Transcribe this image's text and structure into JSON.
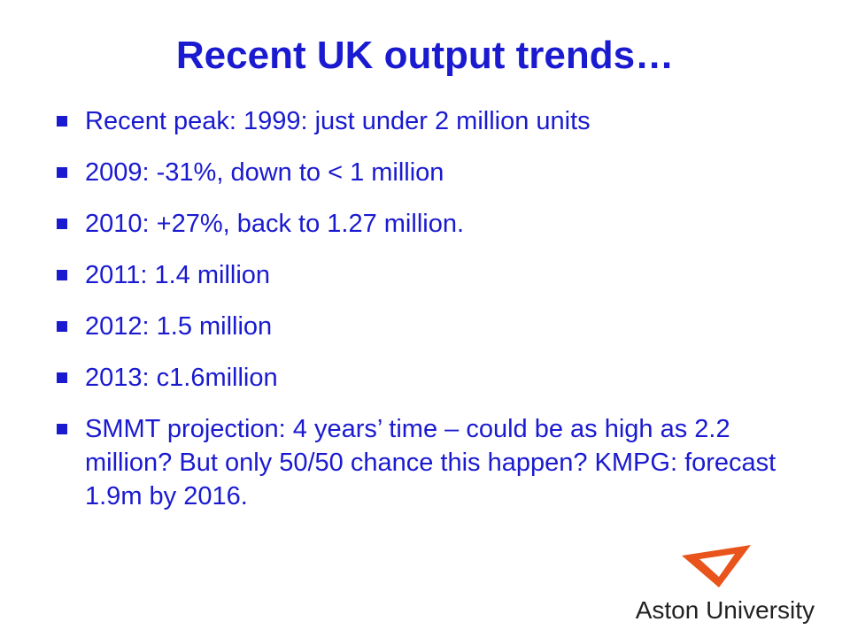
{
  "title": "Recent UK output trends…",
  "bullets": [
    "Recent peak: 1999: just under 2 million units",
    "2009: -31%, down to < 1 million",
    "2010: +27%, back to 1.27 million.",
    "2011: 1.4 million",
    "2012: 1.5 million",
    "2013: c1.6million",
    "SMMT projection: 4 years’ time – could be as high as 2.2 million? But only 50/50 chance this happen? KMPG: forecast 1.9m by 2016."
  ],
  "logo": "Aston University"
}
